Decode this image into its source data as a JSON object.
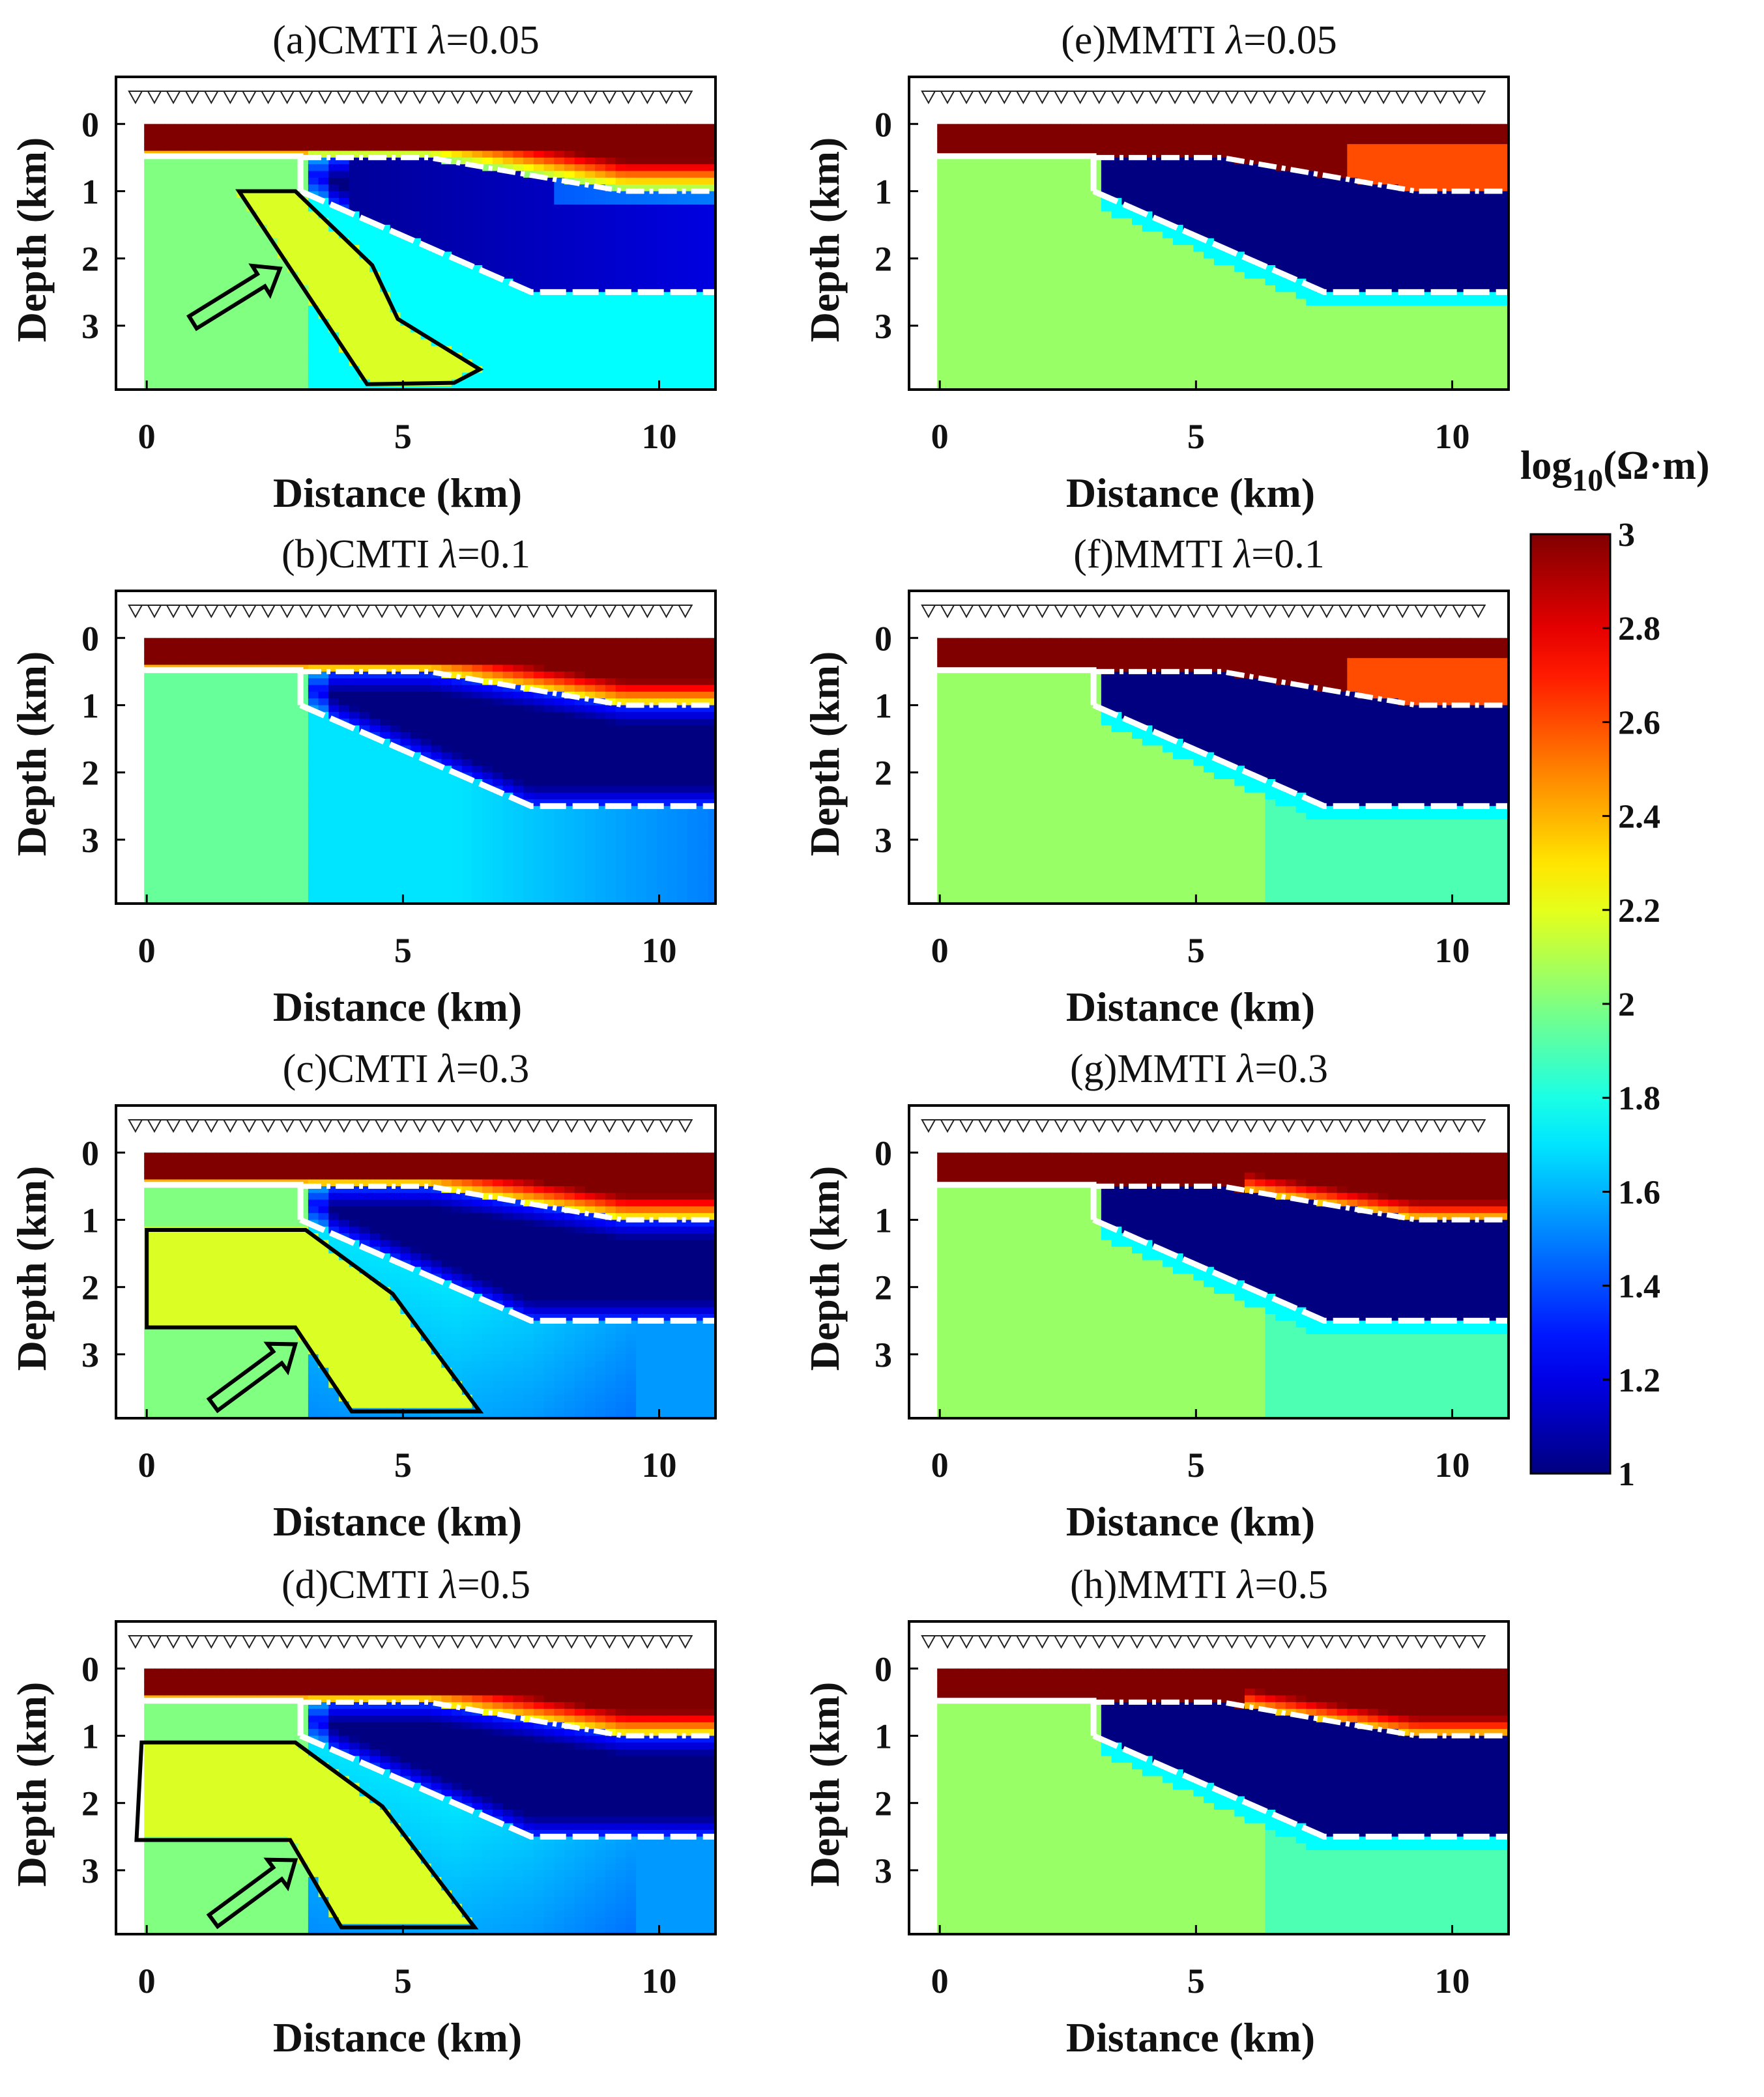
{
  "figure": {
    "colorbar": {
      "title_prefix": "log",
      "title_sub": "10",
      "title_suffix": "(Ω·m)",
      "ticks": [
        "3",
        "2.8",
        "2.6",
        "2.4",
        "2.2",
        "2",
        "1.8",
        "1.6",
        "1.4",
        "1.2",
        "1"
      ],
      "min": 1,
      "max": 3,
      "colormap": "jet"
    }
  },
  "chart_data": [
    {
      "id": "a",
      "type": "heatmap",
      "title_prefix": "(a)CMTI ",
      "title_lambda": "λ",
      "title_suffix": "=0.05",
      "xlabel": "Distance (km)",
      "ylabel": "Depth (km)",
      "xticks": [
        "0",
        "5",
        "10"
      ],
      "yticks": [
        "0",
        "1",
        "2",
        "3"
      ],
      "xlim": [
        -0.6,
        11.1
      ],
      "ylim": [
        -0.7,
        3.95
      ],
      "mode": "cmti",
      "lam": 0.05,
      "anomaly": {
        "vertices_km": [
          [
            1.8,
            1.0
          ],
          [
            2.9,
            1.0
          ],
          [
            4.4,
            2.1
          ],
          [
            4.9,
            2.9
          ],
          [
            6.5,
            3.65
          ],
          [
            6.0,
            3.85
          ],
          [
            4.3,
            3.87
          ]
        ],
        "arrow_km": [
          [
            0.9,
            2.95
          ],
          [
            2.6,
            2.15
          ]
        ]
      }
    },
    {
      "id": "b",
      "type": "heatmap",
      "title_prefix": "(b)CMTI ",
      "title_lambda": "λ",
      "title_suffix": "=0.1",
      "xlabel": "Distance (km)",
      "ylabel": "Depth (km)",
      "xticks": [
        "0",
        "5",
        "10"
      ],
      "yticks": [
        "0",
        "1",
        "2",
        "3"
      ],
      "xlim": [
        -0.6,
        11.1
      ],
      "ylim": [
        -0.7,
        3.95
      ],
      "mode": "cmti",
      "lam": 0.1
    },
    {
      "id": "c",
      "type": "heatmap",
      "title_prefix": "(c)CMTI ",
      "title_lambda": "λ",
      "title_suffix": "=0.3",
      "xlabel": "Distance (km)",
      "ylabel": "Depth (km)",
      "xticks": [
        "0",
        "5",
        "10"
      ],
      "yticks": [
        "0",
        "1",
        "2",
        "3"
      ],
      "xlim": [
        -0.6,
        11.1
      ],
      "ylim": [
        -0.7,
        3.95
      ],
      "mode": "cmti",
      "lam": 0.3,
      "anomaly": {
        "vertices_km": [
          [
            0.0,
            1.15
          ],
          [
            3.1,
            1.15
          ],
          [
            4.8,
            2.1
          ],
          [
            6.5,
            3.85
          ],
          [
            4.0,
            3.85
          ],
          [
            2.9,
            2.6
          ],
          [
            0.0,
            2.6
          ]
        ],
        "arrow_km": [
          [
            1.3,
            3.75
          ],
          [
            2.9,
            2.85
          ]
        ]
      }
    },
    {
      "id": "d",
      "type": "heatmap",
      "title_prefix": "(d)CMTI ",
      "title_lambda": "λ",
      "title_suffix": "=0.5",
      "xlabel": "Distance (km)",
      "ylabel": "Depth (km)",
      "xticks": [
        "0",
        "5",
        "10"
      ],
      "yticks": [
        "0",
        "1",
        "2",
        "3"
      ],
      "xlim": [
        -0.6,
        11.1
      ],
      "ylim": [
        -0.7,
        3.95
      ],
      "mode": "cmti",
      "lam": 0.5,
      "anomaly": {
        "vertices_km": [
          [
            -0.1,
            1.1
          ],
          [
            2.9,
            1.1
          ],
          [
            4.6,
            2.05
          ],
          [
            6.4,
            3.85
          ],
          [
            3.8,
            3.85
          ],
          [
            2.8,
            2.55
          ],
          [
            -0.2,
            2.55
          ]
        ],
        "arrow_km": [
          [
            1.3,
            3.75
          ],
          [
            2.9,
            2.85
          ]
        ]
      }
    },
    {
      "id": "e",
      "type": "heatmap",
      "title_prefix": "(e)MMTI ",
      "title_lambda": "λ",
      "title_suffix": "=0.05",
      "xlabel": "Distance (km)",
      "ylabel": "Depth (km)",
      "xticks": [
        "0",
        "5",
        "10"
      ],
      "yticks": [
        "0",
        "1",
        "2",
        "3"
      ],
      "xlim": [
        -0.6,
        11.1
      ],
      "ylim": [
        -0.7,
        3.95
      ],
      "mode": "mmti",
      "lam": 0.05
    },
    {
      "id": "f",
      "type": "heatmap",
      "title_prefix": "(f)MMTI ",
      "title_lambda": "λ",
      "title_suffix": "=0.1",
      "xlabel": "Distance (km)",
      "ylabel": "Depth (km)",
      "xticks": [
        "0",
        "5",
        "10"
      ],
      "yticks": [
        "0",
        "1",
        "2",
        "3"
      ],
      "xlim": [
        -0.6,
        11.1
      ],
      "ylim": [
        -0.7,
        3.95
      ],
      "mode": "mmti",
      "lam": 0.1
    },
    {
      "id": "g",
      "type": "heatmap",
      "title_prefix": "(g)MMTI ",
      "title_lambda": "λ",
      "title_suffix": "=0.3",
      "xlabel": "Distance (km)",
      "ylabel": "Depth (km)",
      "xticks": [
        "0",
        "5",
        "10"
      ],
      "yticks": [
        "0",
        "1",
        "2",
        "3"
      ],
      "xlim": [
        -0.6,
        11.1
      ],
      "ylim": [
        -0.7,
        3.95
      ],
      "mode": "mmti",
      "lam": 0.3
    },
    {
      "id": "h",
      "type": "heatmap",
      "title_prefix": "(h)MMTI ",
      "title_lambda": "λ",
      "title_suffix": "=0.5",
      "xlabel": "Distance (km)",
      "ylabel": "Depth (km)",
      "xticks": [
        "0",
        "5",
        "10"
      ],
      "yticks": [
        "0",
        "1",
        "2",
        "3"
      ],
      "xlim": [
        -0.6,
        11.1
      ],
      "ylim": [
        -0.7,
        3.95
      ],
      "mode": "mmti",
      "lam": 0.5
    }
  ]
}
